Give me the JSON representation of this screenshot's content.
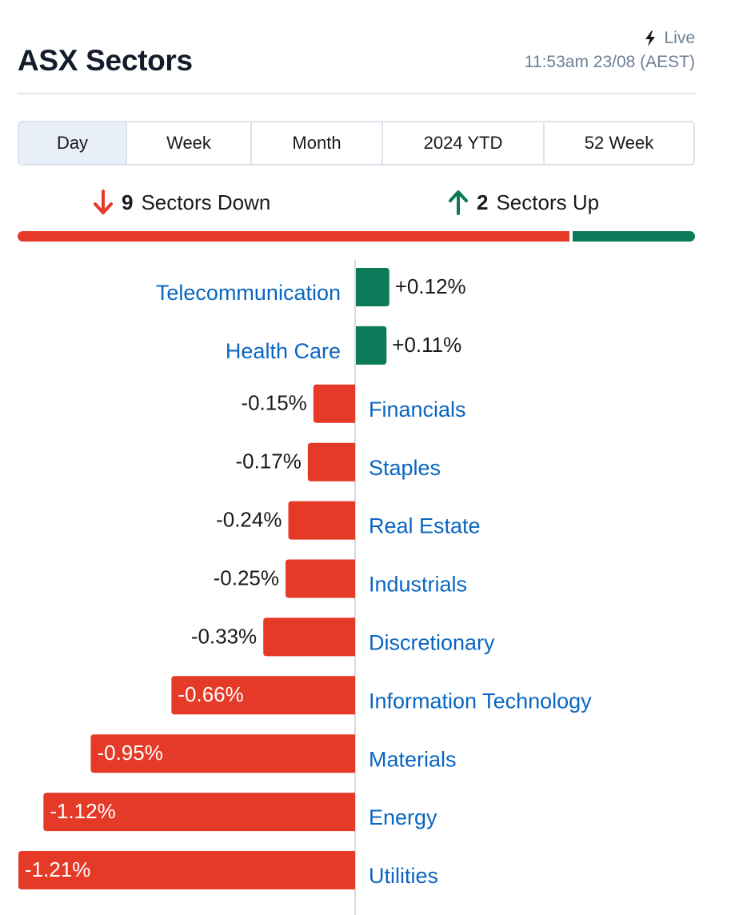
{
  "header": {
    "title": "ASX Sectors",
    "live_label": "Live",
    "timestamp": "11:53am 23/08 (AEST)"
  },
  "tabs": [
    {
      "label": "Day",
      "active": true
    },
    {
      "label": "Week",
      "active": false
    },
    {
      "label": "Month",
      "active": false
    },
    {
      "label": "2024 YTD",
      "active": false
    },
    {
      "label": "52 Week",
      "active": false
    }
  ],
  "summary": {
    "down_count": "9",
    "down_label": "Sectors Down",
    "up_count": "2",
    "up_label": "Sectors Up"
  },
  "colors": {
    "down": "#e53a27",
    "up": "#0b7a58",
    "link": "#0a66c2",
    "axis": "#d5dbe2"
  },
  "chart_data": {
    "type": "bar",
    "orientation": "horizontal-diverging",
    "categories": [
      "Telecommunication",
      "Health Care",
      "Financials",
      "Staples",
      "Real Estate",
      "Industrials",
      "Discretionary",
      "Information Technology",
      "Materials",
      "Energy",
      "Utilities"
    ],
    "values": [
      0.12,
      0.11,
      -0.15,
      -0.17,
      -0.24,
      -0.25,
      -0.33,
      -0.66,
      -0.95,
      -1.12,
      -1.21
    ],
    "value_labels": [
      "+0.12%",
      "+0.11%",
      "-0.15%",
      "-0.17%",
      "-0.24%",
      "-0.25%",
      "-0.33%",
      "-0.66%",
      "-0.95%",
      "-1.12%",
      "-1.21%"
    ],
    "unit": "%"
  }
}
